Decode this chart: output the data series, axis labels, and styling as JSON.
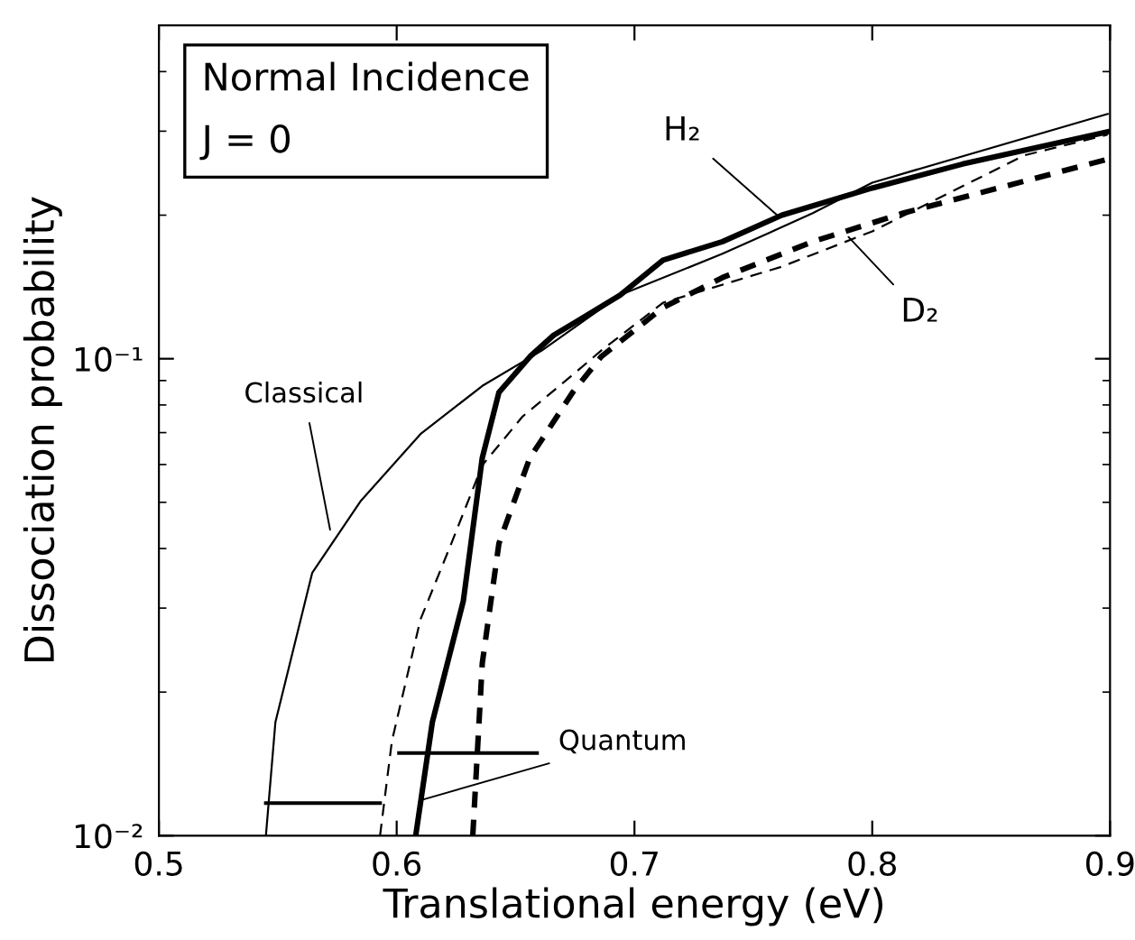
{
  "chart_data": {
    "type": "line",
    "xlabel": "Translational energy (eV)",
    "ylabel": "Dissociation probability",
    "log": "y",
    "xlim": [
      0.5,
      0.9
    ],
    "xticks": [
      0.5,
      0.6,
      0.7,
      0.8,
      0.9
    ],
    "ylim": [
      0.01,
      0.5
    ],
    "yticks": [
      {
        "value": 0.01,
        "label": "10⁻²"
      },
      {
        "value": 0.1,
        "label": "10⁻¹"
      }
    ],
    "grid": false,
    "series": [
      {
        "color": "#000000",
        "line_style": "solid",
        "x": [
          0.545,
          0.549,
          0.5645,
          0.585,
          0.61,
          0.636,
          0.661,
          0.694,
          0.737,
          0.757,
          0.775,
          0.8,
          0.899
        ],
        "values": [
          0.01,
          0.0173,
          0.0356,
          0.0504,
          0.0695,
          0.0877,
          0.104,
          0.136,
          0.166,
          0.184,
          0.202,
          0.234,
          0.326
        ]
      },
      {
        "color": "#000000",
        "line_style": "solid",
        "x": [
          0.608,
          0.615,
          0.628,
          0.636,
          0.643,
          0.656,
          0.666,
          0.676,
          0.694,
          0.712,
          0.737,
          0.762,
          0.8,
          0.838,
          0.899
        ],
        "values": [
          0.01,
          0.0173,
          0.031,
          0.062,
          0.085,
          0.101,
          0.112,
          0.12,
          0.136,
          0.161,
          0.176,
          0.2,
          0.228,
          0.256,
          0.299
        ]
      },
      {
        "color": "#000000",
        "line_style": "dashed",
        "x": [
          0.593,
          0.598,
          0.61,
          0.623,
          0.636,
          0.653,
          0.674,
          0.686,
          0.712,
          0.762,
          0.8,
          0.864,
          0.899
        ],
        "values": [
          0.01,
          0.0158,
          0.0284,
          0.041,
          0.0598,
          0.0757,
          0.0925,
          0.104,
          0.131,
          0.156,
          0.185,
          0.267,
          0.295
        ]
      },
      {
        "color": "#000000",
        "line_style": "dashed",
        "x": [
          0.632,
          0.636,
          0.643,
          0.656,
          0.661,
          0.674,
          0.686,
          0.712,
          0.737,
          0.775,
          0.813,
          0.899
        ],
        "values": [
          0.01,
          0.023,
          0.041,
          0.062,
          0.0676,
          0.085,
          0.101,
          0.128,
          0.148,
          0.176,
          0.202,
          0.262
        ]
      },
      {
        "color": "#000000",
        "line_style": "solid",
        "x": [
          0.545,
          0.593
        ],
        "values": [
          0.0117,
          0.0117
        ]
      },
      {
        "color": "#000000",
        "line_style": "solid",
        "x": [
          0.601,
          0.659
        ],
        "values": [
          0.0149,
          0.0149
        ]
      }
    ],
    "annotations": [
      "Normal Incidence",
      "J = 0",
      {
        "text": "Classical",
        "x": 0.572,
        "y": 0.0438
      },
      {
        "text": "Quantum",
        "x": 0.611,
        "y": 0.0119
      },
      {
        "text": "H₂",
        "x": 0.76,
        "y": 0.2
      },
      {
        "text": "D₂",
        "x": 0.79,
        "y": 0.18
      }
    ]
  }
}
